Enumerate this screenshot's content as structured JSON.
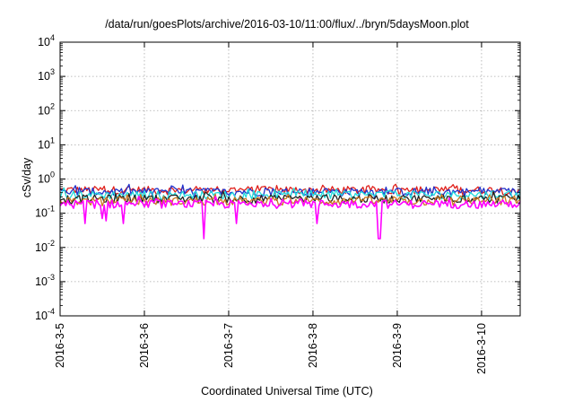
{
  "chart_data": {
    "type": "line",
    "title": "/data/run/goesPlots/archive/2016-03-10/11:00/flux/../bryn/5daysMoon.plot",
    "xlabel": "Coordinated Universal Time (UTC)",
    "ylabel": "cSv/day",
    "y_scale": "log",
    "ylim": [
      0.0001,
      10000
    ],
    "y_ticks": [
      {
        "value": 0.0001,
        "base": "10",
        "exp": "-4"
      },
      {
        "value": 0.001,
        "base": "10",
        "exp": "-3"
      },
      {
        "value": 0.01,
        "base": "10",
        "exp": "-2"
      },
      {
        "value": 0.1,
        "base": "10",
        "exp": "-1"
      },
      {
        "value": 1,
        "base": "10",
        "exp": "0"
      },
      {
        "value": 10,
        "base": "10",
        "exp": "1"
      },
      {
        "value": 100,
        "base": "10",
        "exp": "2"
      },
      {
        "value": 1000,
        "base": "10",
        "exp": "3"
      },
      {
        "value": 10000,
        "base": "10",
        "exp": "4"
      }
    ],
    "xlim": [
      "2016-03-05 00:00",
      "2016-03-10 11:00"
    ],
    "x_ticks": [
      "2016-3-5",
      "2016-3-6",
      "2016-3-7",
      "2016-3-8",
      "2016-3-9",
      "2016-3-10"
    ],
    "grid": true,
    "series": [
      {
        "color": "#e0201b",
        "base": 0.48,
        "x": [
          "2016-03-05 00:00",
          "2016-03-06 00:00",
          "2016-03-07 00:00",
          "2016-03-08 00:00",
          "2016-03-09 00:00",
          "2016-03-10 00:00",
          "2016-03-10 11:00"
        ],
        "values": [
          0.5,
          0.47,
          0.49,
          0.5,
          0.48,
          0.47,
          0.5
        ]
      },
      {
        "color": "#2233cc",
        "base": 0.43,
        "x": [
          "2016-03-05 00:00",
          "2016-03-06 00:00",
          "2016-03-07 00:00",
          "2016-03-08 00:00",
          "2016-03-09 00:00",
          "2016-03-10 00:00",
          "2016-03-10 11:00"
        ],
        "values": [
          0.44,
          0.42,
          0.43,
          0.44,
          0.43,
          0.42,
          0.44
        ]
      },
      {
        "color": "#22dddd",
        "base": 0.35,
        "x": [
          "2016-03-05 00:00",
          "2016-03-06 00:00",
          "2016-03-07 00:00",
          "2016-03-08 00:00",
          "2016-03-09 00:00",
          "2016-03-10 00:00",
          "2016-03-10 11:00"
        ],
        "values": [
          0.36,
          0.34,
          0.35,
          0.35,
          0.35,
          0.34,
          0.36
        ]
      },
      {
        "color": "#222222",
        "base": 0.27,
        "x": [
          "2016-03-05 00:00",
          "2016-03-06 00:00",
          "2016-03-07 00:00",
          "2016-03-08 00:00",
          "2016-03-09 00:00",
          "2016-03-10 00:00",
          "2016-03-10 11:00"
        ],
        "values": [
          0.27,
          0.26,
          0.27,
          0.27,
          0.27,
          0.26,
          0.27
        ]
      },
      {
        "color": "#cc7722",
        "base": 0.23,
        "x": [
          "2016-03-05 00:00",
          "2016-03-06 00:00",
          "2016-03-07 00:00",
          "2016-03-08 00:00",
          "2016-03-09 00:00",
          "2016-03-10 00:00",
          "2016-03-10 11:00"
        ],
        "values": [
          0.23,
          0.22,
          0.23,
          0.23,
          0.23,
          0.22,
          0.23
        ]
      },
      {
        "color": "#ff00ff",
        "base": 0.19,
        "x": [
          "2016-03-05 00:00",
          "2016-03-05 07:00",
          "2016-03-05 12:00",
          "2016-03-05 13:00",
          "2016-03-05 18:00",
          "2016-03-06 00:00",
          "2016-03-06 17:00",
          "2016-03-07 00:00",
          "2016-03-07 02:00",
          "2016-03-08 00:00",
          "2016-03-08 01:00",
          "2016-03-08 19:00",
          "2016-03-09 00:00",
          "2016-03-10 00:00",
          "2016-03-10 11:00"
        ],
        "values": [
          0.19,
          0.05,
          0.07,
          0.06,
          0.05,
          0.18,
          0.018,
          0.19,
          0.05,
          0.19,
          0.05,
          0.018,
          0.19,
          0.18,
          0.19
        ]
      }
    ],
    "dips": [
      {
        "series": 5,
        "x": "2016-03-05 07:00",
        "value": 0.05
      },
      {
        "series": 5,
        "x": "2016-03-05 12:00",
        "value": 0.07
      },
      {
        "series": 5,
        "x": "2016-03-05 13:00",
        "value": 0.06
      },
      {
        "series": 5,
        "x": "2016-03-05 18:00",
        "value": 0.05
      },
      {
        "series": 5,
        "x": "2016-03-06 17:00",
        "value": 0.018
      },
      {
        "series": 5,
        "x": "2016-03-07 02:00",
        "value": 0.05
      },
      {
        "series": 5,
        "x": "2016-03-08 01:00",
        "value": 0.05
      },
      {
        "series": 5,
        "x": "2016-03-08 19:00",
        "value": 0.018
      }
    ]
  }
}
